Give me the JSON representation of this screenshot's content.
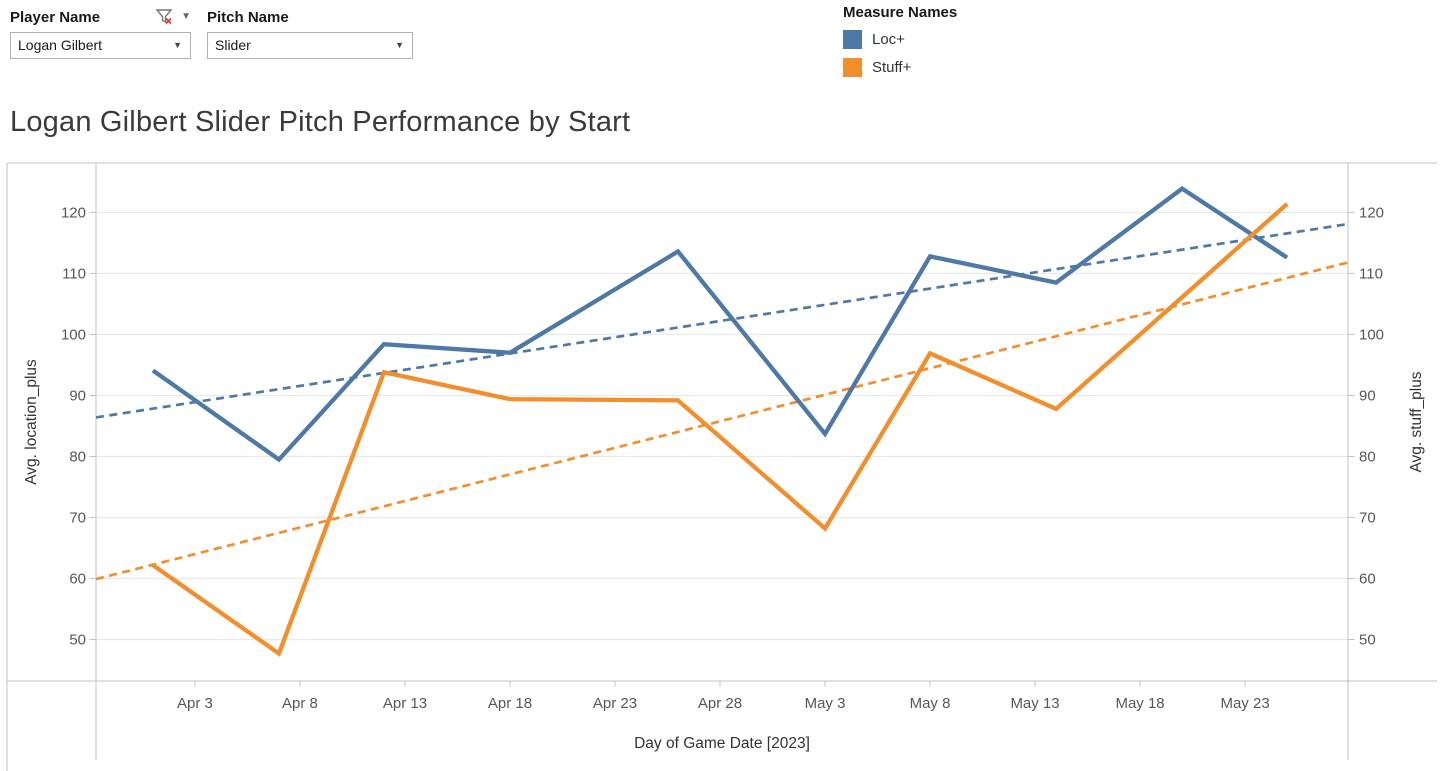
{
  "title": "Logan Gilbert Slider Pitch Performance by Start",
  "filters": {
    "player": {
      "label": "Player Name",
      "value": "Logan Gilbert"
    },
    "pitch": {
      "label": "Pitch Name",
      "value": "Slider"
    }
  },
  "legend": {
    "title": "Measure Names",
    "items": [
      {
        "label": "Loc+",
        "color": "#4e79a7"
      },
      {
        "label": "Stuff+",
        "color": "#f28e2b"
      }
    ]
  },
  "chart_data": {
    "type": "line",
    "title": "Logan Gilbert Slider Pitch Performance by Start",
    "x": [
      "Apr 1",
      "Apr 7",
      "Apr 12",
      "Apr 18",
      "Apr 26",
      "May 3",
      "May 8",
      "May 14",
      "May 20",
      "May 25"
    ],
    "x_day_offsets": [
      0,
      6,
      11,
      17,
      25,
      32,
      37,
      43,
      49,
      54
    ],
    "series": [
      {
        "name": "Loc+",
        "axis": "left",
        "color": "#4e79a7",
        "values": [
          94.1,
          79.5,
          98.4,
          97.0,
          113.6,
          83.7,
          112.8,
          108.5,
          123.9,
          112.6
        ]
      },
      {
        "name": "Stuff+",
        "axis": "right",
        "color": "#f28e2b",
        "values": [
          62.2,
          47.7,
          93.8,
          89.4,
          89.2,
          68.2,
          96.9,
          87.8,
          106.1,
          121.4
        ]
      }
    ],
    "trend_lines": [
      {
        "name": "Loc+ trend",
        "color": "#4e79a7",
        "start_value": 86.4,
        "end_value": 118.1
      },
      {
        "name": "Stuff+ trend",
        "color": "#f28e2b",
        "start_value": 59.9,
        "end_value": 111.8
      }
    ],
    "x_axis": {
      "title": "Day of Game Date [2023]",
      "tick_labels": [
        "Apr 3",
        "Apr 8",
        "Apr 13",
        "Apr 18",
        "Apr 23",
        "Apr 28",
        "May 3",
        "May 8",
        "May 13",
        "May 18",
        "May 23"
      ],
      "tick_day_offsets": [
        2,
        7,
        12,
        17,
        22,
        27,
        32,
        37,
        42,
        47,
        52
      ],
      "domain_day_offsets": [
        -2.71,
        56.9
      ]
    },
    "y_axis_left": {
      "title": "Avg. location_plus",
      "ticks": [
        50,
        60,
        70,
        80,
        90,
        100,
        110,
        120
      ],
      "range": [
        43.2,
        128.1
      ]
    },
    "y_axis_right": {
      "title": "Avg. stuff_plus",
      "ticks": [
        50,
        60,
        70,
        80,
        90,
        100,
        110,
        120
      ],
      "range": [
        43.2,
        128.1
      ]
    },
    "grid": true,
    "legend_position": "top-right"
  },
  "icons": {
    "filter_funnel": "filter-with-red-x",
    "dropdown_caret": "▼"
  },
  "style_colors": {
    "grid_line": "#e9e9e9",
    "axis_line": "#c0c0c0",
    "tick_label": "#575757",
    "axis_title": "#333333"
  }
}
